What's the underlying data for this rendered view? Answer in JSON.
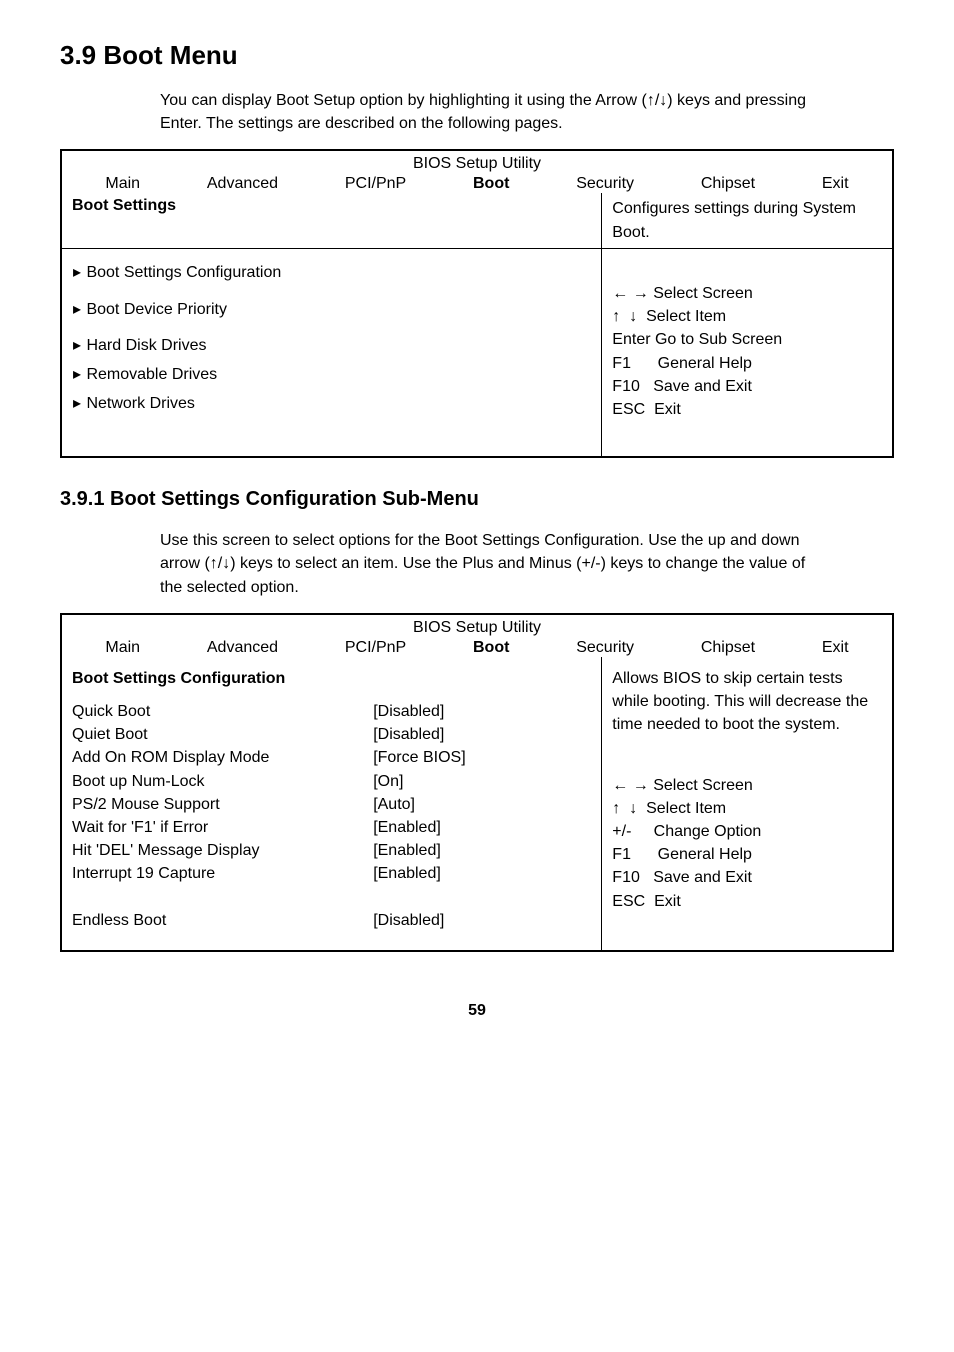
{
  "page": {
    "number": "59"
  },
  "section1": {
    "heading": "3.9   Boot Menu",
    "intro": "You can display Boot Setup option by highlighting it using the Arrow (↑/↓) keys and pressing Enter.  The settings are described on the following pages."
  },
  "bios1": {
    "utility_title": "BIOS Setup Utility",
    "menu": {
      "main": "Main",
      "advanced": "Advanced",
      "pcipnp": "PCI/PnP",
      "boot": "Boot",
      "security": "Security",
      "chipset": "Chipset",
      "exit": "Exit"
    },
    "left_title": "Boot Settings",
    "items": [
      "Boot Settings Configuration",
      "Boot Device Priority",
      "Hard Disk Drives",
      "Removable Drives",
      "Network Drives"
    ],
    "help": {
      "desc": "Configures settings during System Boot.",
      "select_screen": "← → Select Screen",
      "select_item": "↑  ↓  Select Item",
      "sub_screen": "Enter Go to Sub Screen",
      "general_help": "F1      General Help",
      "save_exit": "F10   Save and Exit",
      "esc": "ESC  Exit"
    }
  },
  "section2": {
    "heading": "3.9.1    Boot Settings Configuration Sub-Menu",
    "intro": "Use this screen to select options for the Boot Settings Configuration. Use the up and down arrow (↑/↓) keys to select an item. Use the Plus and Minus (+/-) keys to change the value of the selected option."
  },
  "bios2": {
    "utility_title": "BIOS Setup Utility",
    "menu": {
      "main": "Main",
      "advanced": "Advanced",
      "pcipnp": "PCI/PnP",
      "boot": "Boot",
      "security": "Security",
      "chipset": "Chipset",
      "exit": "Exit"
    },
    "left_title": "Boot Settings Configuration",
    "rows": [
      {
        "label": "Quick Boot",
        "value": "[Disabled]"
      },
      {
        "label": "Quiet Boot",
        "value": "[Disabled]"
      },
      {
        "label": "Add On ROM Display Mode",
        "value": "[Force BIOS]"
      },
      {
        "label": "Boot up Num-Lock",
        "value": "[On]"
      },
      {
        "label": "PS/2 Mouse Support",
        "value": "[Auto]"
      },
      {
        "label": "Wait for 'F1' if Error",
        "value": "[Enabled]"
      },
      {
        "label": "Hit 'DEL' Message Display",
        "value": "[Enabled]"
      },
      {
        "label": "Interrupt 19 Capture",
        "value": "[Enabled]"
      },
      {
        "label": "",
        "value": ""
      },
      {
        "label": "Endless Boot",
        "value": "[Disabled]"
      }
    ],
    "help": {
      "desc": "Allows BIOS to skip certain tests while booting.  This will decrease the time needed to boot the system.",
      "select_screen": "← → Select Screen",
      "select_item": "↑  ↓  Select Item",
      "change_option": "+/-     Change Option",
      "general_help": "F1      General Help",
      "save_exit": "F10   Save and Exit",
      "esc": "ESC  Exit"
    }
  }
}
